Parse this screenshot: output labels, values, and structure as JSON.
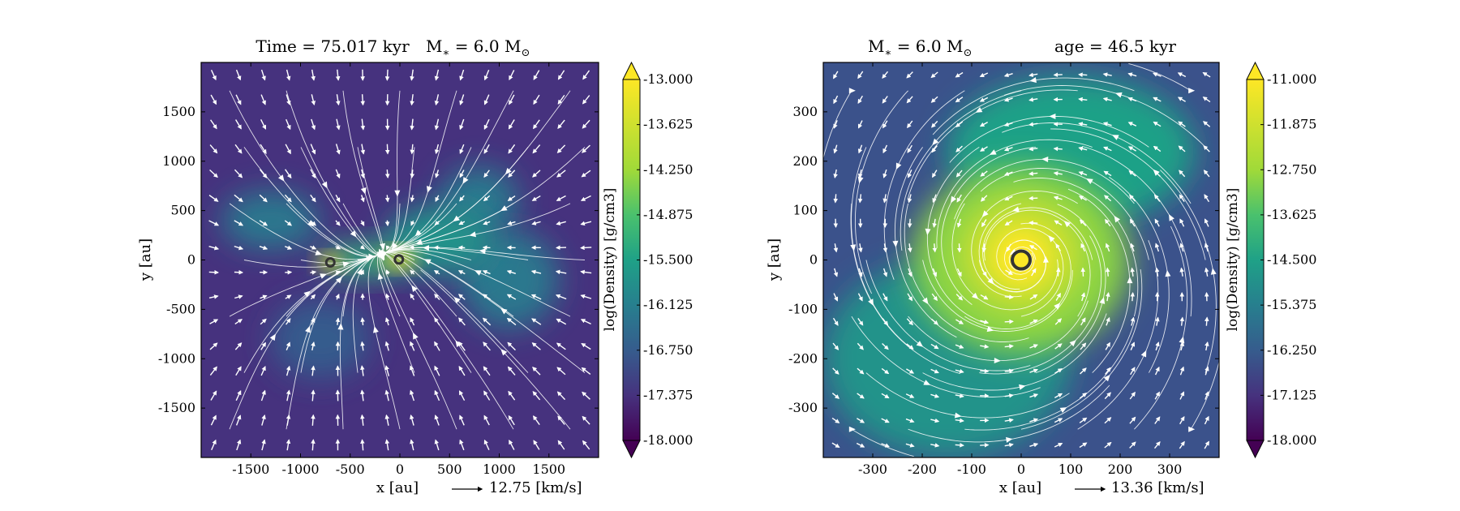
{
  "chart_data": [
    {
      "type": "heatmap",
      "title_time": "Time = 75.017 kyr",
      "title_mass": "M",
      "title_mass_sub": "∗",
      "title_mass_value": "= 6.0 M",
      "title_mass_unit_sub": "⊙",
      "xlabel": "x [au]",
      "ylabel": "y [au]",
      "xlim": [
        -2000,
        2000
      ],
      "ylim": [
        -2000,
        2000
      ],
      "xticks": [
        -1500,
        -1000,
        -500,
        0,
        500,
        1000,
        1500
      ],
      "yticks": [
        -1500,
        -1000,
        -500,
        0,
        500,
        1000,
        1500
      ],
      "colorbar_label": "log(Density) [g/cm3]",
      "colorbar_range": [
        -18.0,
        -13.0
      ],
      "colorbar_ticks": [
        "-13.000",
        "-13.625",
        "-14.250",
        "-14.875",
        "-15.500",
        "-16.125",
        "-16.750",
        "-17.375",
        "-18.000"
      ],
      "velocity_key": "12.75 [km/s]",
      "sinks": [
        {
          "x": -700,
          "y": -25
        },
        {
          "x": -10,
          "y": 5
        }
      ],
      "density_blobs": [
        {
          "x": -700,
          "y": -20,
          "rx": 120,
          "ry": 70,
          "level": 1.0
        },
        {
          "x": 0,
          "y": 10,
          "rx": 160,
          "ry": 90,
          "level": 1.0
        },
        {
          "x": -350,
          "y": 0,
          "rx": 450,
          "ry": 170,
          "level": 0.55
        },
        {
          "x": 400,
          "y": 200,
          "rx": 550,
          "ry": 350,
          "level": 0.45
        },
        {
          "x": 800,
          "y": 600,
          "rx": 400,
          "ry": 350,
          "level": 0.35
        },
        {
          "x": -1300,
          "y": 400,
          "rx": 500,
          "ry": 300,
          "level": 0.35
        },
        {
          "x": 1100,
          "y": -200,
          "rx": 500,
          "ry": 500,
          "level": 0.35
        },
        {
          "x": -800,
          "y": -800,
          "rx": 500,
          "ry": 400,
          "level": 0.25
        }
      ]
    },
    {
      "type": "heatmap",
      "title_mass": "M",
      "title_mass_sub": "∗",
      "title_mass_value": "= 6.0 M",
      "title_mass_unit_sub": "⊙",
      "title_age": "age = 46.5 kyr",
      "xlabel": "x [au]",
      "ylabel": "y [au]",
      "xlim": [
        -400,
        400
      ],
      "ylim": [
        -400,
        400
      ],
      "xticks": [
        -300,
        -200,
        -100,
        0,
        100,
        200,
        300
      ],
      "yticks": [
        -300,
        -200,
        -100,
        0,
        100,
        200,
        300
      ],
      "colorbar_label": "log(Density) [g/cm3]",
      "colorbar_range": [
        -18.0,
        -11.0
      ],
      "colorbar_ticks": [
        "-11.000",
        "-11.875",
        "-12.750",
        "-13.625",
        "-14.500",
        "-15.375",
        "-16.250",
        "-17.125",
        "-18.000"
      ],
      "velocity_key": "13.36 [km/s]",
      "sinks": [
        {
          "x": 0,
          "y": 0
        }
      ],
      "density_blobs": [
        {
          "x": 0,
          "y": 0,
          "rx": 220,
          "ry": 190,
          "level": 0.72
        },
        {
          "x": 0,
          "y": 10,
          "rx": 120,
          "ry": 110,
          "level": 0.88
        },
        {
          "x": 0,
          "y": 5,
          "rx": 55,
          "ry": 55,
          "level": 1.0
        },
        {
          "x": 100,
          "y": 220,
          "rx": 250,
          "ry": 150,
          "level": 0.5
        },
        {
          "x": -150,
          "y": -200,
          "rx": 250,
          "ry": 200,
          "level": 0.45
        }
      ]
    }
  ]
}
